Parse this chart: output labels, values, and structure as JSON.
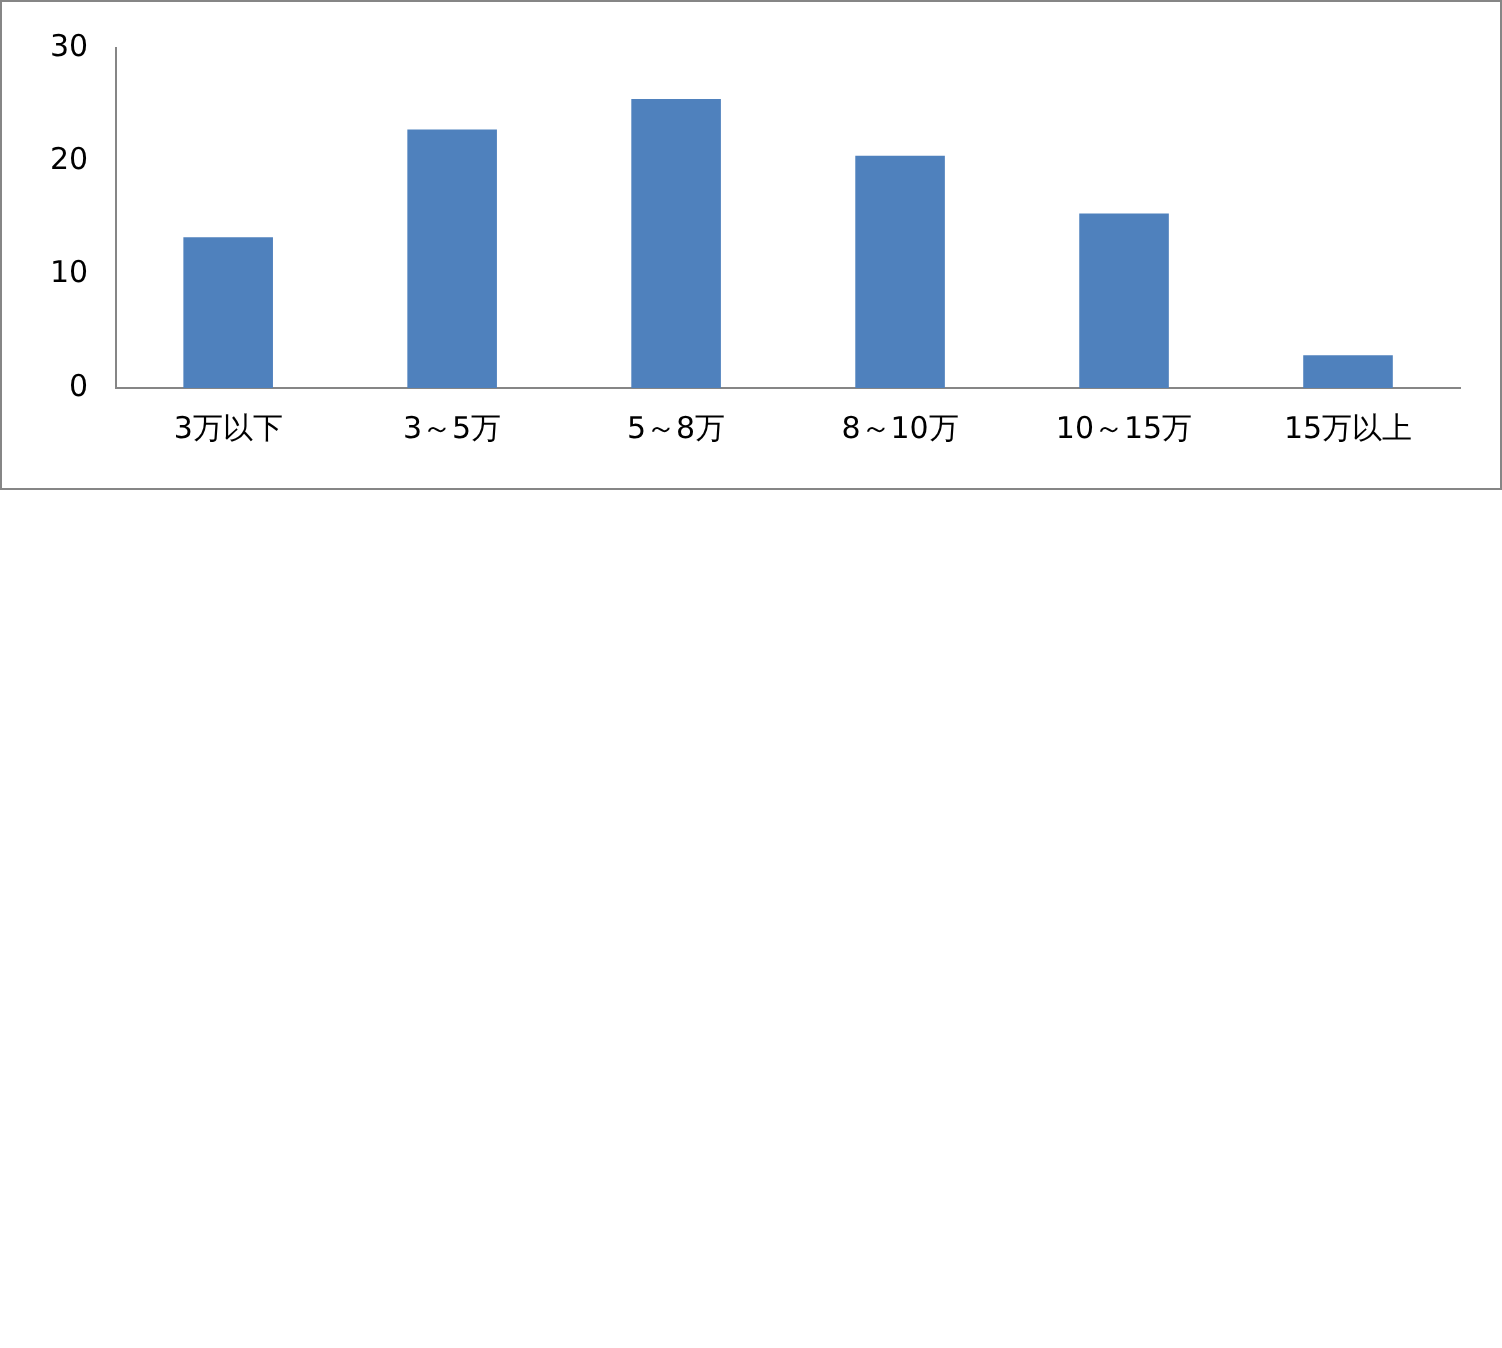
{
  "chart_data": {
    "type": "bar",
    "categories": [
      "3万以下",
      "3～5万",
      "5～8万",
      "8～10万",
      "10～15万",
      "15万以上"
    ],
    "values": [
      13.3,
      22.8,
      25.5,
      20.5,
      15.4,
      2.9
    ],
    "color": "#4f81bd",
    "ylim": [
      0,
      30
    ],
    "yticks": [
      0,
      10,
      20,
      30
    ],
    "grid": false,
    "legend": false
  }
}
